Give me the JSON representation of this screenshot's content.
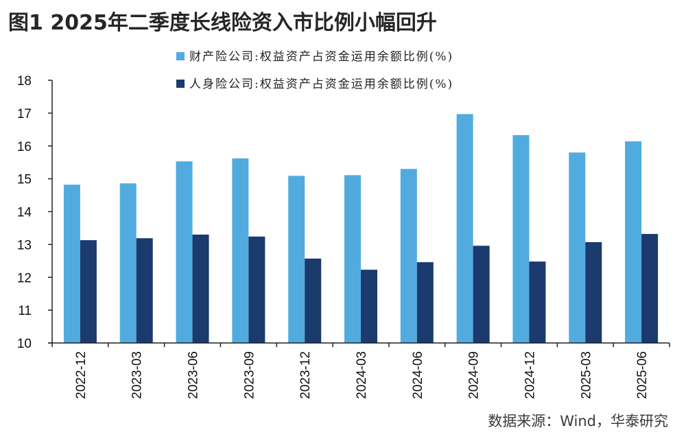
{
  "title": "图1  2025年二季度长线险资入市比例小幅回升",
  "source": "数据来源：Wind，华泰研究",
  "chart_data": {
    "type": "bar",
    "title": "2025年二季度长线险资入市比例小幅回升",
    "xlabel": "",
    "ylabel": "",
    "ylim": [
      10,
      18
    ],
    "yticks": [
      10,
      11,
      12,
      13,
      14,
      15,
      16,
      17,
      18
    ],
    "grid": false,
    "legend_position": "top-right",
    "categories": [
      "2022-12",
      "2023-03",
      "2023-06",
      "2023-09",
      "2023-12",
      "2024-03",
      "2024-06",
      "2024-09",
      "2024-12",
      "2025-03",
      "2025-06"
    ],
    "series": [
      {
        "name": "财产险公司:权益资产占资金运用余额比例(%)",
        "color": "#52abdf",
        "values": [
          14.82,
          14.86,
          15.53,
          15.62,
          15.09,
          15.11,
          15.3,
          16.97,
          16.33,
          15.8,
          16.14
        ]
      },
      {
        "name": "人身险公司:权益资产占资金运用余额比例(%)",
        "color": "#1b3a6e",
        "values": [
          13.13,
          13.19,
          13.3,
          13.24,
          12.57,
          12.23,
          12.46,
          12.96,
          12.48,
          13.07,
          13.32
        ]
      }
    ]
  }
}
